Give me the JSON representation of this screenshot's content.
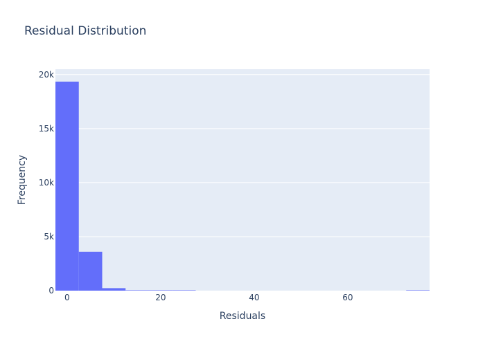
{
  "chart_data": {
    "type": "bar",
    "title": "Residual Distribution",
    "xlabel": "Residuals",
    "ylabel": "Frequency",
    "bin_width": 5,
    "bins": [
      {
        "start": -2.5,
        "end": 2.5,
        "count": 19350
      },
      {
        "start": 2.5,
        "end": 7.5,
        "count": 3600
      },
      {
        "start": 7.5,
        "end": 12.5,
        "count": 230
      },
      {
        "start": 12.5,
        "end": 17.5,
        "count": 15
      },
      {
        "start": 17.5,
        "end": 22.5,
        "count": 4
      },
      {
        "start": 22.5,
        "end": 27.5,
        "count": 2
      },
      {
        "start": 72.5,
        "end": 77.5,
        "count": 1
      }
    ],
    "xlim": [
      -2.5,
      77.5
    ],
    "ylim": [
      0,
      20500
    ],
    "x_ticks": [
      {
        "value": 0,
        "label": "0"
      },
      {
        "value": 20,
        "label": "20"
      },
      {
        "value": 40,
        "label": "40"
      },
      {
        "value": 60,
        "label": "60"
      }
    ],
    "y_ticks": [
      {
        "value": 0,
        "label": "0"
      },
      {
        "value": 5000,
        "label": "5k"
      },
      {
        "value": 10000,
        "label": "10k"
      },
      {
        "value": 15000,
        "label": "15k"
      },
      {
        "value": 20000,
        "label": "20k"
      }
    ],
    "grid": true,
    "colors": {
      "bar": "#636efa",
      "plot_bg": "#e5ecf6",
      "grid": "#ffffff",
      "text": "#2a3f5f"
    }
  }
}
